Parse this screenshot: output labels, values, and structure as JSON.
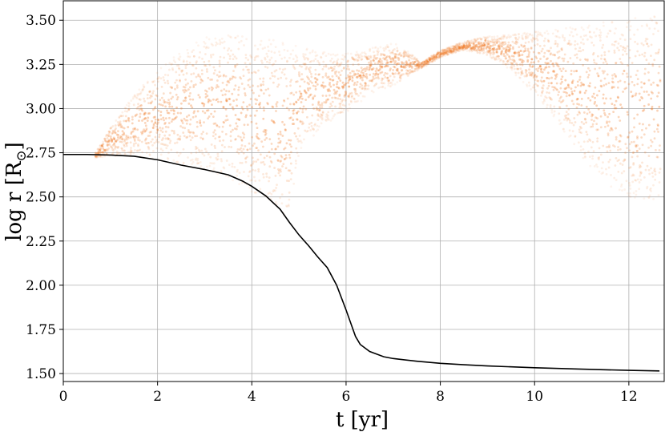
{
  "chart_data": {
    "type": "scatter",
    "xlabel": "t [yr]",
    "ylabel": "log r [R",
    "ylabel_sub": "⊙",
    "ylabel_close": "]",
    "xlim": [
      0,
      12.75
    ],
    "ylim": [
      1.455,
      3.61
    ],
    "grid": true,
    "x_ticks": [
      0,
      2,
      4,
      6,
      8,
      10,
      12
    ],
    "x_tick_labels": [
      "0",
      "2",
      "4",
      "6",
      "8",
      "10",
      "12"
    ],
    "y_ticks": [
      1.5,
      1.75,
      2.0,
      2.25,
      2.5,
      2.75,
      3.0,
      3.25,
      3.5
    ],
    "y_tick_labels": [
      "1.50",
      "1.75",
      "2.00",
      "2.25",
      "2.50",
      "2.75",
      "3.00",
      "3.25",
      "3.50"
    ],
    "series": [
      {
        "kind": "line",
        "color": "#000000",
        "x": [
          0,
          0.5,
          1.0,
          1.5,
          2.0,
          2.5,
          3.0,
          3.5,
          3.8,
          4.0,
          4.3,
          4.6,
          4.8,
          5.0,
          5.2,
          5.4,
          5.6,
          5.8,
          6.0,
          6.2,
          6.3,
          6.5,
          6.8,
          7.0,
          7.5,
          8.0,
          8.5,
          9.0,
          10.0,
          11.0,
          12.0,
          12.65
        ],
        "y": [
          2.74,
          2.74,
          2.737,
          2.73,
          2.71,
          2.68,
          2.655,
          2.625,
          2.59,
          2.56,
          2.505,
          2.43,
          2.355,
          2.285,
          2.225,
          2.16,
          2.1,
          2.0,
          1.86,
          1.71,
          1.665,
          1.625,
          1.595,
          1.585,
          1.57,
          1.558,
          1.55,
          1.543,
          1.533,
          1.525,
          1.518,
          1.515
        ]
      },
      {
        "kind": "scatter-cloud",
        "color": "#f07f2e",
        "outline_upper": {
          "x": [
            0.7,
            1.0,
            1.5,
            2.0,
            2.5,
            3.0,
            3.5,
            4.0,
            4.5,
            5.0,
            5.5,
            6.0,
            6.5,
            7.0,
            7.3,
            7.6,
            8.0,
            8.5,
            9.0,
            9.5,
            10.0,
            10.5,
            11.0,
            11.5,
            12.0,
            12.65
          ],
          "y": [
            2.75,
            2.9,
            3.08,
            3.22,
            3.33,
            3.4,
            3.43,
            3.42,
            3.39,
            3.35,
            3.32,
            3.31,
            3.34,
            3.37,
            3.33,
            3.26,
            3.33,
            3.38,
            3.41,
            3.42,
            3.44,
            3.45,
            3.47,
            3.49,
            3.51,
            3.54
          ]
        },
        "outline_lower": {
          "x": [
            0.7,
            1.0,
            1.5,
            2.0,
            2.5,
            3.0,
            3.5,
            4.0,
            4.5,
            4.8,
            5.0,
            5.5,
            6.0,
            6.5,
            7.0,
            7.3,
            7.6,
            8.0,
            8.5,
            9.0,
            9.5,
            10.0,
            10.5,
            11.0,
            11.5,
            12.0,
            12.65
          ],
          "y": [
            2.72,
            2.73,
            2.73,
            2.71,
            2.68,
            2.65,
            2.61,
            2.52,
            2.43,
            2.38,
            2.75,
            2.9,
            2.98,
            3.08,
            3.13,
            3.18,
            3.23,
            3.29,
            3.33,
            3.3,
            3.22,
            3.08,
            2.92,
            2.72,
            2.58,
            2.5,
            2.48
          ]
        }
      }
    ]
  }
}
